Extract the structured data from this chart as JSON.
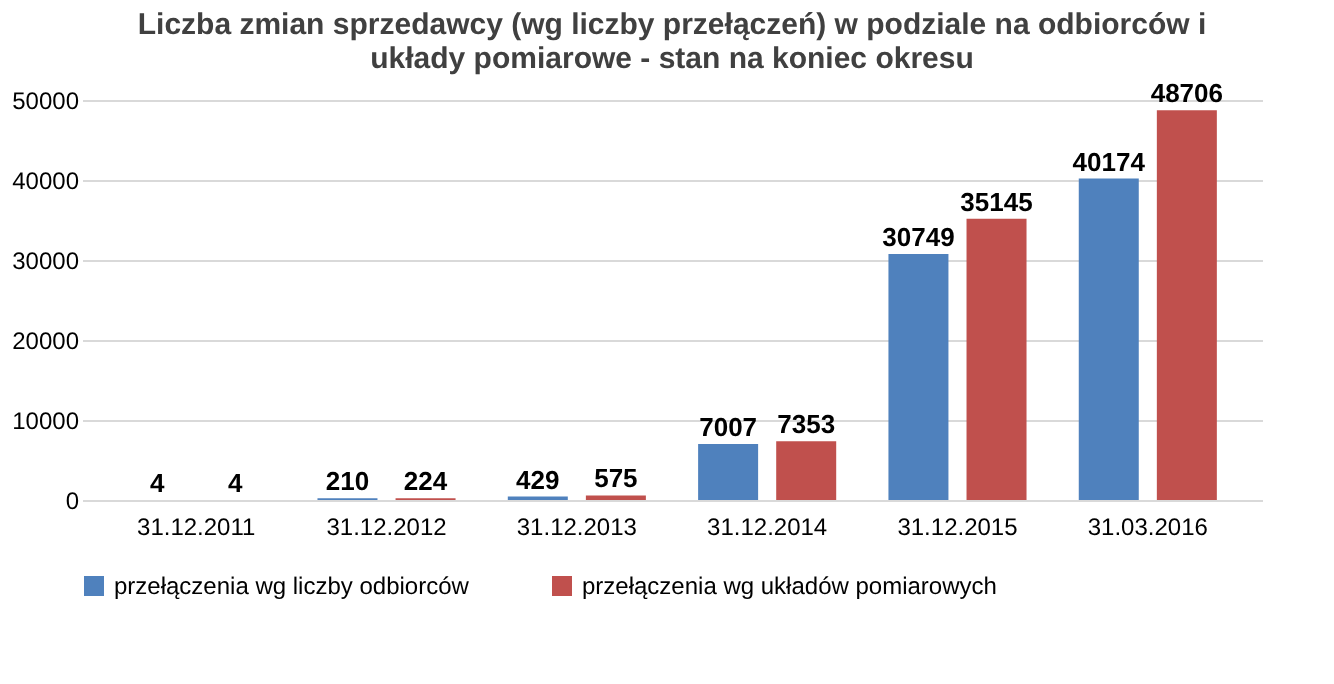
{
  "chart_data": {
    "type": "bar",
    "title": "Liczba zmian sprzedawcy (wg liczby przełączeń) w podziale na odbiorców i układy pomiarowe - stan na koniec okresu",
    "categories": [
      "31.12.2011",
      "31.12.2012",
      "31.12.2013",
      "31.12.2014",
      "31.12.2015",
      "31.03.2016"
    ],
    "series": [
      {
        "name": "przełączenia wg liczby odbiorców",
        "color": "#4f81bd",
        "values": [
          4,
          210,
          429,
          7007,
          30749,
          40174
        ]
      },
      {
        "name": "przełączenia wg układów pomiarowych",
        "color": "#c0504d",
        "values": [
          4,
          224,
          575,
          7353,
          35145,
          48706
        ]
      }
    ],
    "ylim": [
      0,
      50000
    ],
    "yticks": [
      0,
      10000,
      20000,
      30000,
      40000,
      50000
    ],
    "grid": "y",
    "legend": "bottom",
    "data_labels": true
  }
}
